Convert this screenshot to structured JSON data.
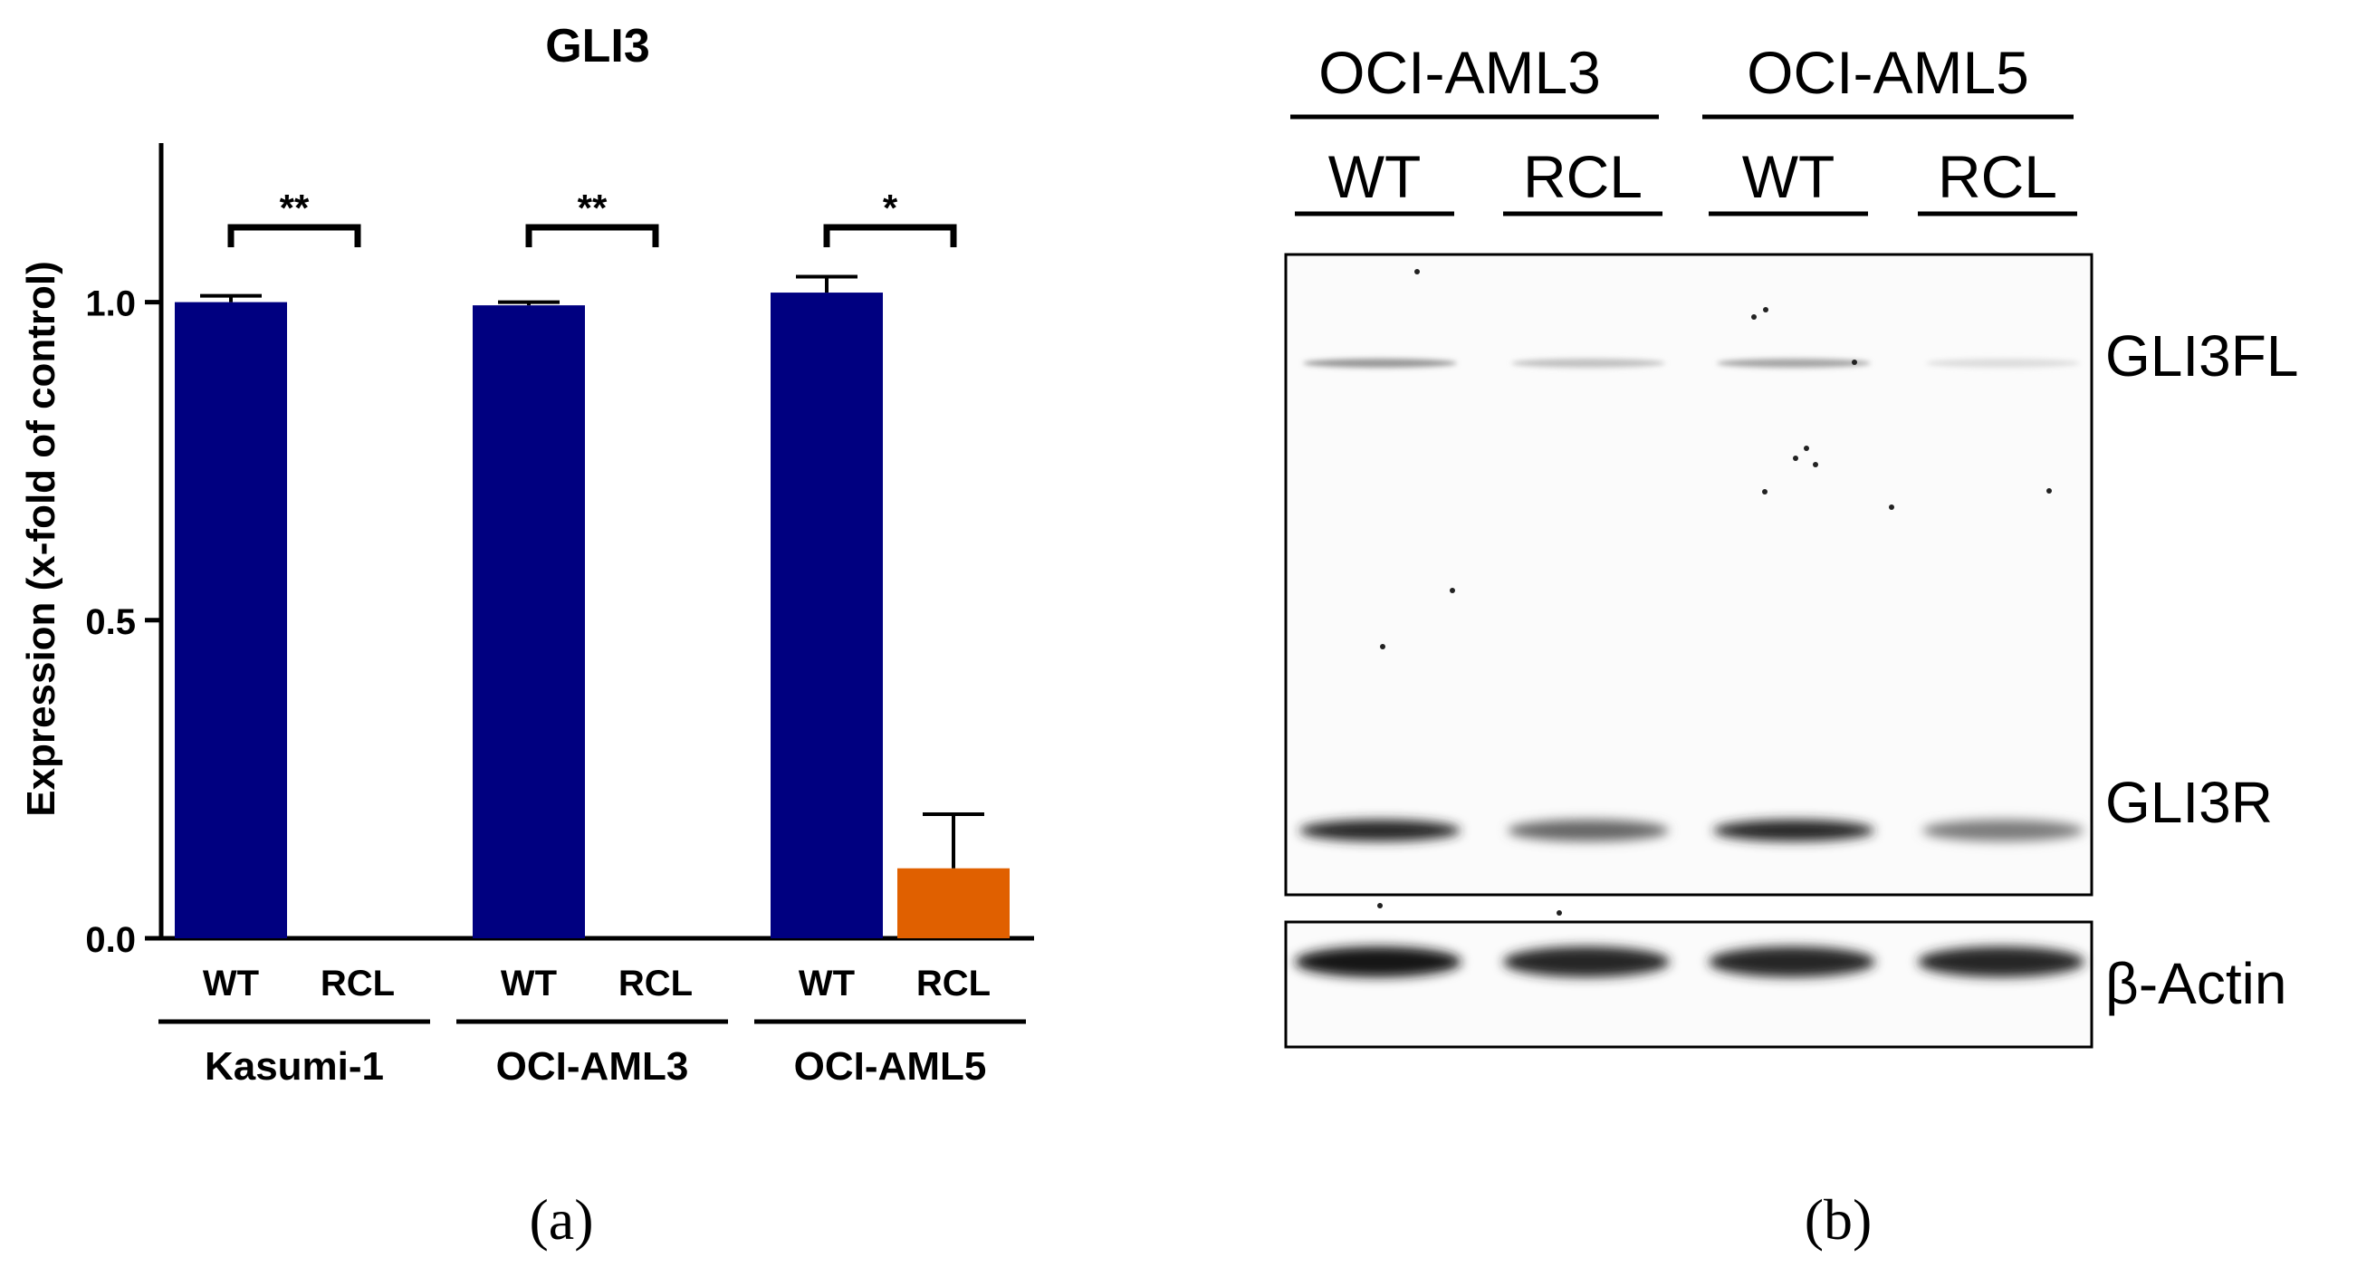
{
  "panel_a": {
    "label": "(a)",
    "chart_data": {
      "type": "bar",
      "title": "GLI3",
      "ylabel": "Expression (x-fold of control)",
      "xlabel": "",
      "ylim": [
        0,
        1.25
      ],
      "yticks": [
        "0.0",
        "0.5",
        "1.0"
      ],
      "categories": [
        "WT",
        "RCL",
        "WT",
        "RCL",
        "WT",
        "RCL"
      ],
      "groups": [
        {
          "name": "Kasumi-1",
          "bars": [
            {
              "label": "WT",
              "value": 1.0,
              "error": 0.01,
              "color": "#000080"
            },
            {
              "label": "RCL",
              "value": 0.0,
              "error": 0.0,
              "color": "#000080"
            }
          ],
          "significance": "**"
        },
        {
          "name": "OCI-AML3",
          "bars": [
            {
              "label": "WT",
              "value": 0.995,
              "error": 0.005,
              "color": "#000080"
            },
            {
              "label": "RCL",
              "value": 0.0,
              "error": 0.0,
              "color": "#000080"
            }
          ],
          "significance": "**"
        },
        {
          "name": "OCI-AML5",
          "bars": [
            {
              "label": "WT",
              "value": 1.015,
              "error": 0.025,
              "color": "#000080"
            },
            {
              "label": "RCL",
              "value": 0.11,
              "error": 0.085,
              "color": "#E06000"
            }
          ],
          "significance": "*"
        }
      ],
      "grid": false,
      "legend": "none"
    }
  },
  "panel_b": {
    "label": "(b)",
    "cell_lines": [
      "OCI-AML3",
      "OCI-AML5"
    ],
    "lanes": [
      "WT",
      "RCL",
      "WT",
      "RCL"
    ],
    "bands": [
      "GLI3FL",
      "GLI3R"
    ],
    "loading_control": "β-Actin",
    "band_intensity": {
      "GLI3FL": [
        0.75,
        0.45,
        0.65,
        0.25
      ],
      "GLI3R": [
        1.0,
        0.7,
        1.0,
        0.6
      ],
      "actin": [
        1.0,
        0.95,
        0.95,
        0.95
      ]
    }
  }
}
